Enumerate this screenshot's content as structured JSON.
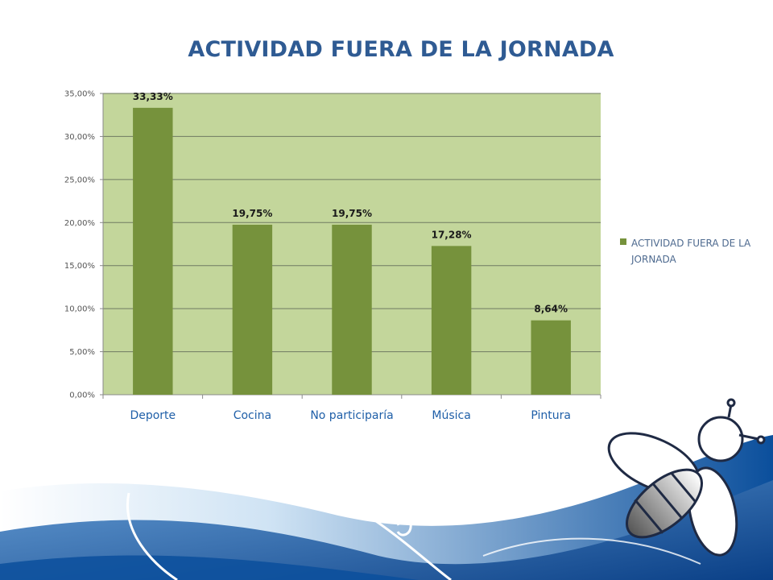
{
  "colors": {
    "title": "#2f5b93",
    "plot_background": "#c3d69b",
    "bar": "#76923c",
    "category_label": "#1f5fa8",
    "gridline": "#6f7a62",
    "wave_dark": "#0b4f9c",
    "wave_light": "#cfe3f4"
  },
  "decoration": {
    "mascot_icon": "bee-mascot-icon",
    "background_icon": "blue-wave-icon"
  },
  "chart_data": {
    "type": "bar",
    "title": "ACTIVIDAD FUERA DE LA JORNADA",
    "categories": [
      "Deporte",
      "Cocina",
      "No participaría",
      "Música",
      "Pintura"
    ],
    "series": [
      {
        "name": "ACTIVIDAD FUERA DE LA JORNADA",
        "values": [
          33.33,
          19.75,
          19.75,
          17.28,
          8.64
        ],
        "data_labels": [
          "33,33%",
          "19,75%",
          "19,75%",
          "17,28%",
          "8,64%"
        ]
      }
    ],
    "ylim": [
      0,
      35
    ],
    "y_ticks": [
      "0,00%",
      "5,00%",
      "10,00%",
      "15,00%",
      "20,00%",
      "25,00%",
      "30,00%",
      "35,00%"
    ],
    "grid": true,
    "legend_position": "right"
  }
}
